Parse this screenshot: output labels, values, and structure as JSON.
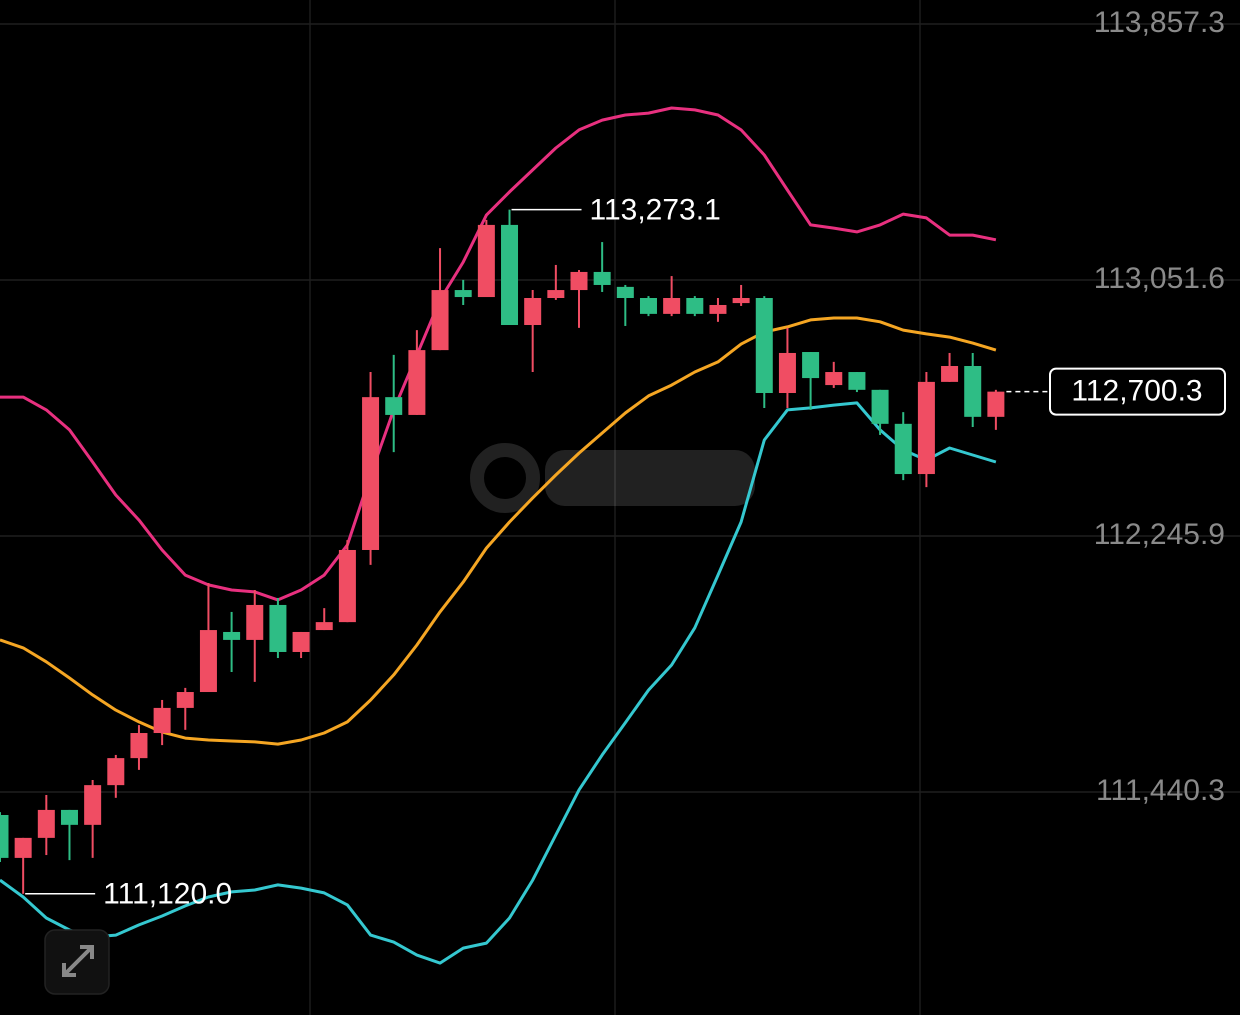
{
  "chart_data": {
    "type": "candlestick",
    "up_color": "#f04d63",
    "down_color": "#2ebd85",
    "ylim": [
      110738.6,
      113932.8
    ],
    "yticks": [
      {
        "value": 113857.3,
        "label": "113,857.3"
      },
      {
        "value": 113051.6,
        "label": "113,051.6"
      },
      {
        "value": 112245.9,
        "label": "112,245.9"
      },
      {
        "value": 111440.3,
        "label": "111,440.3"
      }
    ],
    "grid": true,
    "open": [
      111368,
      111233,
      111296,
      111384,
      111337,
      111462,
      111547,
      111626,
      111705,
      111755,
      111944,
      111919,
      112029,
      111881,
      111950,
      111975,
      112202,
      112683,
      112627,
      112831,
      113020,
      112998,
      113225,
      112910,
      112995,
      113020,
      113077,
      113030,
      112995,
      112945,
      112995,
      112945,
      112979,
      112995,
      112696,
      112825,
      112721,
      112762,
      112706,
      112599,
      112441,
      112731,
      112781,
      112621
    ],
    "high": [
      111377,
      111296,
      111431,
      111384,
      111478,
      111557,
      111651,
      111730,
      111768,
      112098,
      112007,
      112076,
      112051,
      111944,
      112019,
      112233,
      112762,
      112816,
      112894,
      113152,
      113052,
      113241,
      113273.1,
      113020,
      113099,
      113083,
      113171,
      113036,
      113001,
      113064,
      113001,
      112995,
      113036,
      113001,
      112901,
      112825,
      112794,
      112762,
      112706,
      112636,
      112762,
      112822,
      112822,
      112706
    ],
    "low": [
      111220,
      111120.0,
      111242,
      111226,
      111233,
      111422,
      111510,
      111588,
      111636,
      111755,
      111818,
      111787,
      111862,
      111862,
      111950,
      111975,
      112155,
      112510,
      112627,
      112831,
      112973,
      112998,
      112910,
      112762,
      112989,
      112901,
      113014,
      112907,
      112938,
      112938,
      112938,
      112920,
      112970,
      112649,
      112649,
      112643,
      112712,
      112699,
      112564,
      112422,
      112400,
      112731,
      112589,
      112580
    ],
    "close": [
      111233,
      111296,
      111384,
      111337,
      111462,
      111547,
      111626,
      111705,
      111755,
      111950,
      111919,
      112029,
      111881,
      111944,
      111975,
      112202,
      112683,
      112627,
      112831,
      113020,
      112998,
      113225,
      112910,
      112995,
      113020,
      113077,
      113036,
      112995,
      112945,
      112995,
      112945,
      112973,
      112995,
      112696,
      112822,
      112743,
      112762,
      112706,
      112599,
      112441,
      112731,
      112781,
      112621,
      112700.3
    ],
    "bands": [
      {
        "color": "#e8307f",
        "values": [
          112683,
          112683,
          112643,
          112580,
          112479,
          112375,
          112296,
          112202,
          112123,
          112092,
          112076,
          112070,
          112045,
          112076,
          112123,
          112218,
          112438,
          112643,
          112816,
          112989,
          113108,
          113256,
          113329,
          113398,
          113467,
          113524,
          113555,
          113571,
          113577,
          113593,
          113587,
          113571,
          113524,
          113445,
          113335,
          113225,
          113215,
          113203,
          113225,
          113259,
          113247,
          113193,
          113193,
          113178
        ]
      },
      {
        "color": "#f5a623",
        "values": [
          111919,
          111894,
          111850,
          111799,
          111746,
          111698,
          111661,
          111629,
          111610,
          111604,
          111601,
          111598,
          111591,
          111604,
          111626,
          111661,
          111730,
          111809,
          111903,
          112007,
          112101,
          112208,
          112290,
          112366,
          112438,
          112507,
          112570,
          112633,
          112687,
          112721,
          112762,
          112794,
          112850,
          112888,
          112904,
          112926,
          112932,
          112932,
          112920,
          112894,
          112882,
          112872,
          112853,
          112831
        ]
      },
      {
        "color": "#35c8d0",
        "values": [
          111163,
          111110,
          111044,
          111006,
          110984,
          110990,
          111022,
          111050,
          111082,
          111110,
          111126,
          111132,
          111148,
          111138,
          111123,
          111085,
          110990,
          110968,
          110927,
          110902,
          110949,
          110965,
          111044,
          111163,
          111305,
          111447,
          111557,
          111658,
          111761,
          111840,
          111957,
          112123,
          112290,
          112548,
          112643,
          112649,
          112658,
          112665,
          112580,
          112517,
          112485,
          112523,
          112501,
          112479
        ]
      }
    ],
    "annotations": [
      {
        "text": "113,273.1",
        "value": 113273.1
      },
      {
        "text": "111,120.0",
        "value": 111120.0
      }
    ],
    "last_price": {
      "text": "112,700.3",
      "value": 112700.3
    }
  }
}
